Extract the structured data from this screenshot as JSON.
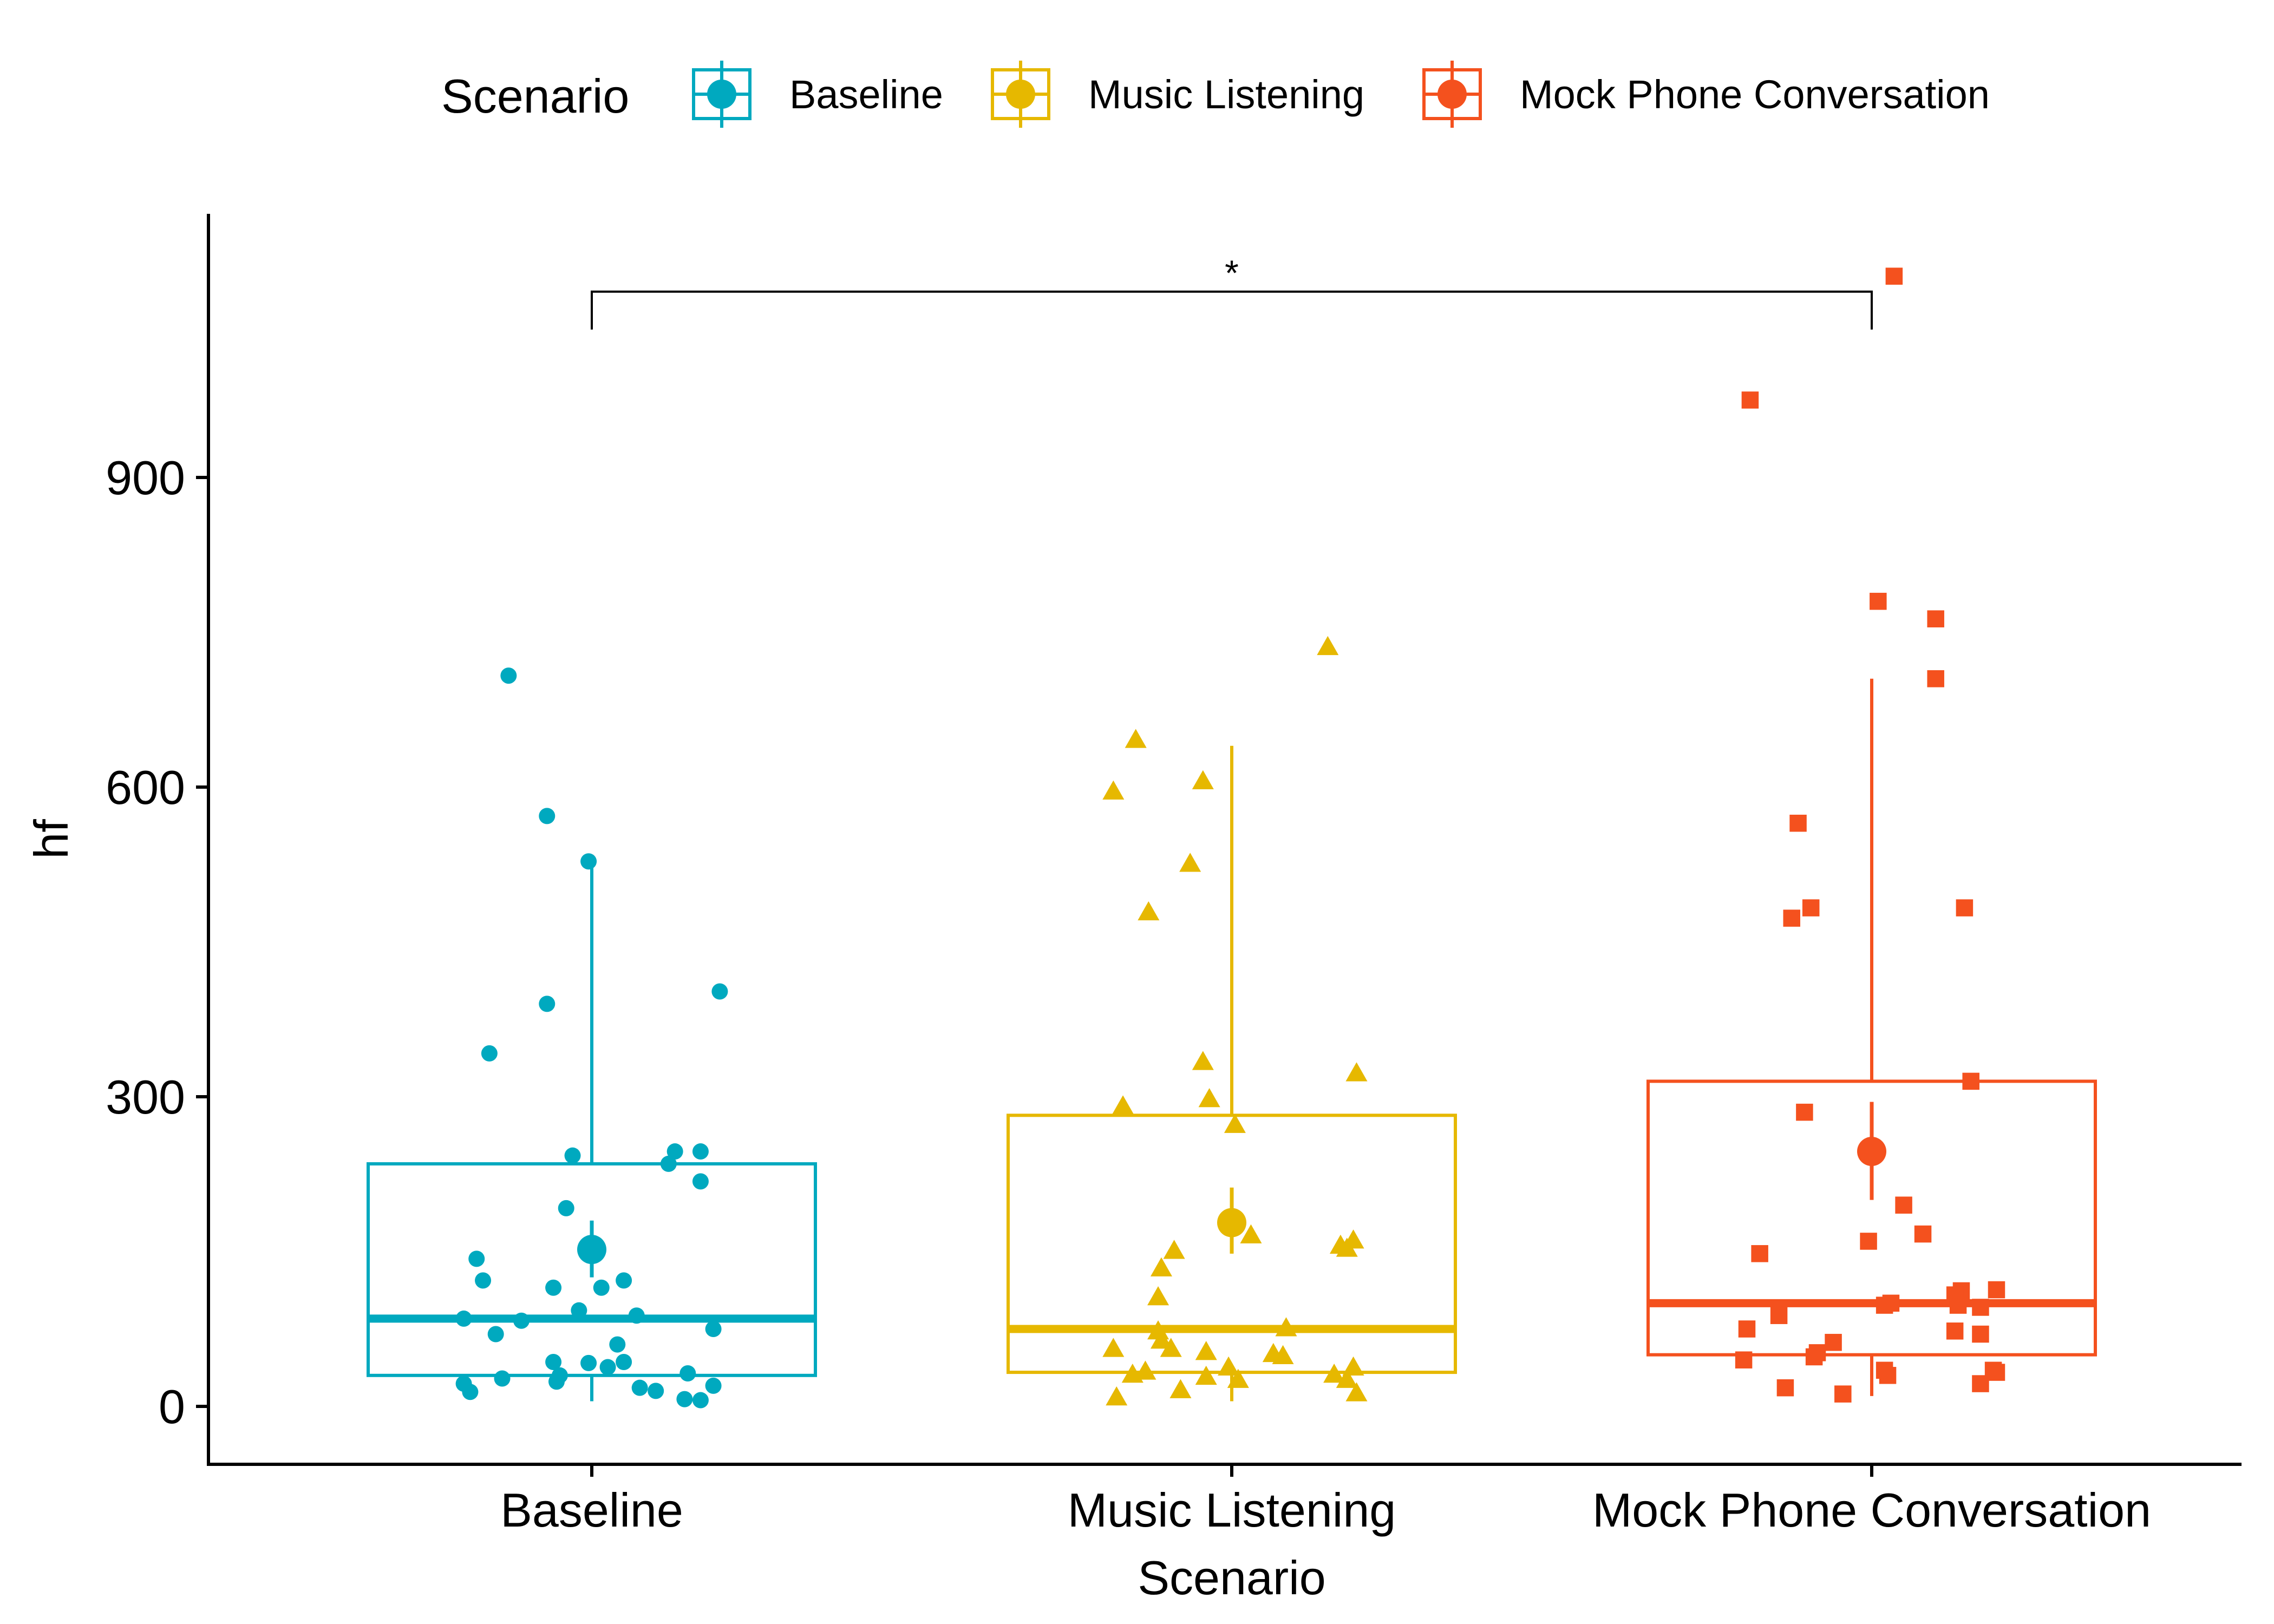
{
  "chart_data": {
    "type": "box",
    "xlabel": "Scenario",
    "ylabel": "hf",
    "ylim": [
      -50,
      1120
    ],
    "yticks": [
      0,
      300,
      600,
      900
    ],
    "grid": false,
    "legend": {
      "title": "Scenario",
      "placement": "top",
      "entries": [
        "Baseline",
        "Music Listening",
        "Mock Phone Conversation"
      ]
    },
    "significance": {
      "from": "Baseline",
      "to": "Mock Phone Conversation",
      "y": 1080,
      "label": "*"
    },
    "categories": [
      "Baseline",
      "Music Listening",
      "Mock Phone Conversation"
    ],
    "series": [
      {
        "name": "Baseline",
        "color": "#00A9BF",
        "marker": "circle",
        "box": {
          "q1": 30,
          "median": 85,
          "q3": 235,
          "whisker_low": 5,
          "whisker_high": 530
        },
        "mean": 152,
        "mean_err": [
          125,
          180
        ],
        "points": [
          {
            "dx": -0.13,
            "y": 708
          },
          {
            "dx": -0.07,
            "y": 572
          },
          {
            "dx": -0.005,
            "y": 528
          },
          {
            "dx": 0.2,
            "y": 402
          },
          {
            "dx": -0.07,
            "y": 390
          },
          {
            "dx": -0.16,
            "y": 342
          },
          {
            "dx": 0.13,
            "y": 247
          },
          {
            "dx": -0.03,
            "y": 243
          },
          {
            "dx": 0.17,
            "y": 247
          },
          {
            "dx": 0.12,
            "y": 235
          },
          {
            "dx": 0.17,
            "y": 218
          },
          {
            "dx": -0.04,
            "y": 192
          },
          {
            "dx": -0.18,
            "y": 143
          },
          {
            "dx": 0.05,
            "y": 122
          },
          {
            "dx": -0.17,
            "y": 122
          },
          {
            "dx": 0.015,
            "y": 115
          },
          {
            "dx": -0.06,
            "y": 115
          },
          {
            "dx": -0.02,
            "y": 93
          },
          {
            "dx": 0.07,
            "y": 88
          },
          {
            "dx": -0.11,
            "y": 83
          },
          {
            "dx": -0.2,
            "y": 85
          },
          {
            "dx": 0.19,
            "y": 75
          },
          {
            "dx": -0.15,
            "y": 70
          },
          {
            "dx": 0.04,
            "y": 60
          },
          {
            "dx": -0.06,
            "y": 43
          },
          {
            "dx": -0.005,
            "y": 42
          },
          {
            "dx": 0.05,
            "y": 43
          },
          {
            "dx": 0.025,
            "y": 38
          },
          {
            "dx": 0.15,
            "y": 32
          },
          {
            "dx": -0.05,
            "y": 30
          },
          {
            "dx": -0.14,
            "y": 27
          },
          {
            "dx": -0.055,
            "y": 24
          },
          {
            "dx": -0.2,
            "y": 22
          },
          {
            "dx": 0.19,
            "y": 20
          },
          {
            "dx": 0.075,
            "y": 18
          },
          {
            "dx": 0.1,
            "y": 15
          },
          {
            "dx": -0.19,
            "y": 14
          },
          {
            "dx": 0.145,
            "y": 7
          },
          {
            "dx": 0.17,
            "y": 6
          }
        ]
      },
      {
        "name": "Music Listening",
        "color": "#E6B800",
        "marker": "triangle",
        "box": {
          "q1": 33,
          "median": 75,
          "q3": 282,
          "whisker_low": 5,
          "whisker_high": 640
        },
        "mean": 178,
        "mean_err": [
          148,
          212
        ],
        "points": [
          {
            "dx": 0.15,
            "y": 735
          },
          {
            "dx": -0.15,
            "y": 645
          },
          {
            "dx": -0.185,
            "y": 595
          },
          {
            "dx": -0.045,
            "y": 605
          },
          {
            "dx": -0.065,
            "y": 525
          },
          {
            "dx": -0.13,
            "y": 478
          },
          {
            "dx": -0.045,
            "y": 333
          },
          {
            "dx": 0.195,
            "y": 322
          },
          {
            "dx": -0.035,
            "y": 297
          },
          {
            "dx": -0.17,
            "y": 290
          },
          {
            "dx": 0.005,
            "y": 272
          },
          {
            "dx": 0.03,
            "y": 165
          },
          {
            "dx": 0.19,
            "y": 160
          },
          {
            "dx": 0.17,
            "y": 155
          },
          {
            "dx": 0.18,
            "y": 152
          },
          {
            "dx": -0.09,
            "y": 150
          },
          {
            "dx": -0.11,
            "y": 133
          },
          {
            "dx": -0.115,
            "y": 105
          },
          {
            "dx": -0.115,
            "y": 72
          },
          {
            "dx": 0.085,
            "y": 75
          },
          {
            "dx": -0.11,
            "y": 63
          },
          {
            "dx": -0.095,
            "y": 55
          },
          {
            "dx": -0.185,
            "y": 55
          },
          {
            "dx": -0.04,
            "y": 52
          },
          {
            "dx": 0.065,
            "y": 50
          },
          {
            "dx": 0.08,
            "y": 48
          },
          {
            "dx": -0.005,
            "y": 37
          },
          {
            "dx": 0.19,
            "y": 37
          },
          {
            "dx": -0.135,
            "y": 33
          },
          {
            "dx": 0.16,
            "y": 30
          },
          {
            "dx": -0.155,
            "y": 30
          },
          {
            "dx": -0.04,
            "y": 28
          },
          {
            "dx": 0.01,
            "y": 25
          },
          {
            "dx": 0.18,
            "y": 25
          },
          {
            "dx": -0.08,
            "y": 15
          },
          {
            "dx": 0.195,
            "y": 12
          },
          {
            "dx": -0.18,
            "y": 8
          }
        ]
      },
      {
        "name": "Mock Phone Conversation",
        "color": "#F4511E",
        "marker": "square",
        "box": {
          "q1": 50,
          "median": 100,
          "q3": 315,
          "whisker_low": 10,
          "whisker_high": 705
        },
        "mean": 247,
        "mean_err": [
          200,
          295
        ],
        "points": [
          {
            "dx": 0.035,
            "y": 1095
          },
          {
            "dx": -0.19,
            "y": 975
          },
          {
            "dx": 0.01,
            "y": 780
          },
          {
            "dx": 0.1,
            "y": 763
          },
          {
            "dx": 0.1,
            "y": 705
          },
          {
            "dx": -0.115,
            "y": 565
          },
          {
            "dx": -0.095,
            "y": 483
          },
          {
            "dx": 0.145,
            "y": 483
          },
          {
            "dx": -0.125,
            "y": 473
          },
          {
            "dx": 0.155,
            "y": 315
          },
          {
            "dx": -0.105,
            "y": 285
          },
          {
            "dx": 0.05,
            "y": 195
          },
          {
            "dx": 0.08,
            "y": 167
          },
          {
            "dx": -0.005,
            "y": 160
          },
          {
            "dx": -0.175,
            "y": 148
          },
          {
            "dx": 0.14,
            "y": 112
          },
          {
            "dx": 0.195,
            "y": 113
          },
          {
            "dx": 0.13,
            "y": 108
          },
          {
            "dx": 0.03,
            "y": 100
          },
          {
            "dx": 0.02,
            "y": 98
          },
          {
            "dx": 0.17,
            "y": 96
          },
          {
            "dx": 0.135,
            "y": 98
          },
          {
            "dx": -0.145,
            "y": 88
          },
          {
            "dx": -0.195,
            "y": 75
          },
          {
            "dx": 0.13,
            "y": 73
          },
          {
            "dx": 0.17,
            "y": 70
          },
          {
            "dx": -0.06,
            "y": 62
          },
          {
            "dx": -0.085,
            "y": 52
          },
          {
            "dx": -0.09,
            "y": 48
          },
          {
            "dx": -0.2,
            "y": 45
          },
          {
            "dx": 0.19,
            "y": 35
          },
          {
            "dx": 0.195,
            "y": 33
          },
          {
            "dx": 0.02,
            "y": 35
          },
          {
            "dx": 0.025,
            "y": 30
          },
          {
            "dx": 0.17,
            "y": 22
          },
          {
            "dx": -0.135,
            "y": 18
          },
          {
            "dx": -0.045,
            "y": 12
          }
        ]
      }
    ]
  }
}
